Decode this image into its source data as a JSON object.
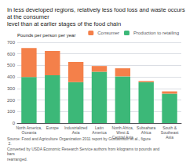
{
  "chart_data": {
    "type": "bar",
    "title": "In less developed regions, relatively less food loss and waste occurs at the consumer\nlevel than at earlier stages of the food chain",
    "y_label": "Pounds per person per year",
    "annotations": [
      "Source: Food and Agriculture Organization 2011 report by Gustavsson et al., figure 2.\nConverted by USDA Economic Research Service authors from kilograms to pounds and bars\nrearranged."
    ],
    "categories": [
      "North America,\nOceania",
      "Europe",
      "Industrialized\nAsia",
      "Latin\nAmerica",
      "North Africa,\nWest &\nCentral Asia",
      "Subsahara\nAfrica",
      "South &\nSoutheast\nAsia"
    ],
    "series": [
      {
        "name": "Production to retailing",
        "color": "#3cb878",
        "values": [
          400,
          415,
          355,
          445,
          405,
          355,
          255
        ]
      },
      {
        "name": "Consumer",
        "color": "#f4804a",
        "values": [
          250,
          210,
          175,
          50,
          70,
          10,
          20
        ]
      }
    ],
    "stacked": true,
    "ylim": [
      0,
      700
    ],
    "yticks": [
      0,
      100,
      200,
      300,
      400,
      500,
      600,
      700
    ],
    "grid": true,
    "legend": "upper right"
  }
}
